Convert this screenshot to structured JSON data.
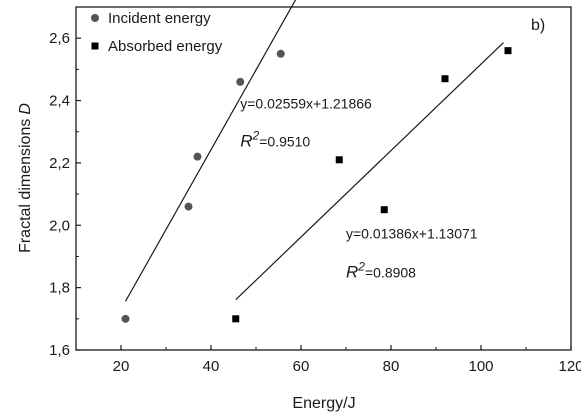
{
  "chart_data": {
    "type": "scatter",
    "panel_label": "b)",
    "xlabel": "Energy/J",
    "ylabel_main": "Fractal dimensions",
    "ylabel_symbol": "D",
    "xlim": [
      10,
      120
    ],
    "ylim": [
      1.6,
      2.7
    ],
    "x_ticks": [
      20,
      40,
      60,
      80,
      100,
      120
    ],
    "x_tick_labels": [
      "20",
      "40",
      "60",
      "80",
      "100",
      "120"
    ],
    "y_ticks": [
      1.6,
      1.8,
      2.0,
      2.2,
      2.4,
      2.6
    ],
    "y_tick_labels": [
      "1,6",
      "1,8",
      "2,0",
      "2,2",
      "2,4",
      "2,6"
    ],
    "legend_position": "top-left",
    "series": [
      {
        "name": "Incident energy",
        "marker": "circle",
        "color": "#555555",
        "x": [
          21.0,
          35.0,
          37.0,
          46.5,
          55.5
        ],
        "y": [
          1.7,
          2.06,
          2.22,
          2.46,
          2.55
        ],
        "fit": {
          "x": [
            21.0,
            62.0
          ]
        },
        "equation": "y=0.02559x+1.21866",
        "r2_symbol": "R",
        "r2_exp": "2",
        "r2_value": "=0.9510"
      },
      {
        "name": "Absorbed energy",
        "marker": "square",
        "color": "#000000",
        "x": [
          45.5,
          68.5,
          78.5,
          92.0,
          106.0
        ],
        "y": [
          1.7,
          2.21,
          2.05,
          2.47,
          2.56
        ],
        "fit": {
          "x": [
            45.5,
            105.0
          ]
        },
        "equation": "y=0.01386x+1.13071",
        "r2_symbol": "R",
        "r2_exp": "2",
        "r2_value": "=0.8908"
      }
    ]
  }
}
